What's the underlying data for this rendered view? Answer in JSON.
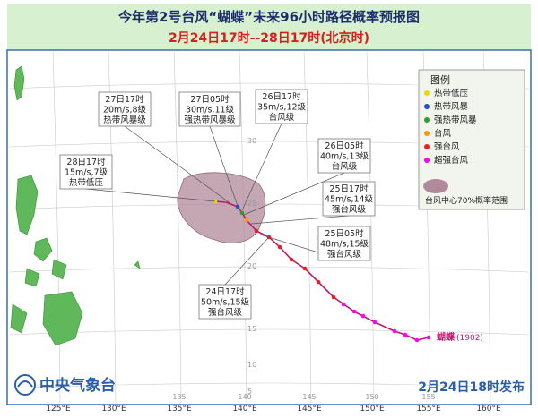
{
  "header": {
    "title": "今年第2号台风“蝴蝶”未来96小时路径概率预报图",
    "subtitle": "2月24日17时--28日17时(北京时)"
  },
  "legend": {
    "title": "图例",
    "items": [
      "热带低压",
      "热带风暴",
      "强热带风暴",
      "台风",
      "强台风",
      "超强台风"
    ],
    "cone": "台风中心70%概率范围"
  },
  "callouts": [
    {
      "lines": [
        "27日17时",
        "20m/s,8级",
        "热带风暴级"
      ]
    },
    {
      "lines": [
        "27日05时",
        "30m/s,11级",
        "强热带风暴级"
      ]
    },
    {
      "lines": [
        "26日17时",
        "35m/s,12级",
        "台风级"
      ]
    },
    {
      "lines": [
        "26日05时",
        "40m/s,13级",
        "台风级"
      ]
    },
    {
      "lines": [
        "25日17时",
        "45m/s,14级",
        "强台风级"
      ]
    },
    {
      "lines": [
        "25日05时",
        "48m/s,15级",
        "强台风级"
      ]
    },
    {
      "lines": [
        "24日17时",
        "50m/s,15级",
        "强台风级"
      ]
    },
    {
      "lines": [
        "28日17时",
        "15m/s,7级",
        "热带低压"
      ]
    }
  ],
  "storm_label": {
    "name": "蝴蝶",
    "code": "(1902)"
  },
  "axis": {
    "lon_labels": [
      "125°E",
      "130°E",
      "135°E",
      "140°E",
      "145°E",
      "150°E",
      "155°E",
      "160°E"
    ],
    "inner_lon": [
      "135",
      "140",
      "145",
      "150",
      "155"
    ],
    "inner_lat": [
      "30",
      "25",
      "20",
      "15",
      "10",
      "5"
    ]
  },
  "footer": {
    "agency": "中央气象台",
    "issued": "2月24日18时发布"
  }
}
